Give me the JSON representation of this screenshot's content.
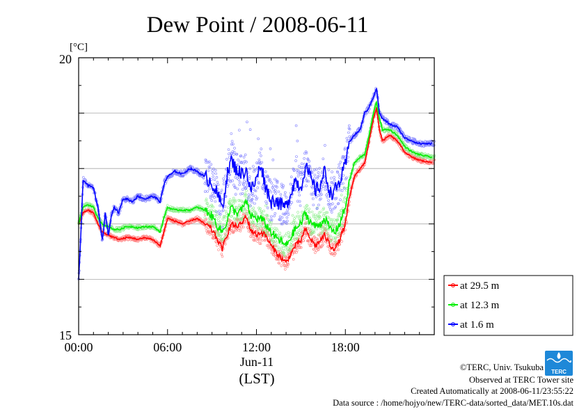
{
  "chart_data": {
    "type": "line",
    "title": "Dew Point / 2008-06-11",
    "ylabel": "[°C]",
    "xlabel_date": "Jun-11",
    "xlabel_tz": "(LST)",
    "ylim": [
      15,
      20
    ],
    "y_ticks_labeled": [
      "20",
      "15"
    ],
    "y_grid": [
      16,
      17,
      18,
      19
    ],
    "xlim": [
      0,
      24
    ],
    "x_ticks": [
      {
        "t": 0,
        "label": "00:00"
      },
      {
        "t": 6,
        "label": "06:00"
      },
      {
        "t": 12,
        "label": "12:00"
      },
      {
        "t": 18,
        "label": "18:00"
      }
    ],
    "legend_position": "right",
    "series": [
      {
        "name": "at 29.5 m",
        "color": "#ff0000",
        "scatter_color": "#ff8080",
        "hours": [
          0.0,
          0.3,
          0.6,
          1.0,
          1.3,
          1.6,
          2.0,
          2.4,
          2.8,
          3.2,
          3.6,
          4.0,
          4.5,
          5.0,
          5.3,
          5.5,
          5.8,
          6.0,
          6.5,
          7.0,
          7.5,
          8.0,
          8.5,
          8.8,
          9.1,
          9.4,
          9.7,
          10.0,
          10.3,
          10.6,
          11.0,
          11.3,
          11.6,
          12.0,
          12.3,
          12.6,
          13.0,
          13.3,
          13.6,
          14.0,
          14.3,
          14.6,
          15.0,
          15.3,
          15.6,
          16.0,
          16.3,
          16.6,
          17.0,
          17.3,
          17.6,
          18.0,
          18.3,
          18.6,
          19.0,
          19.3,
          19.6,
          19.9,
          20.1,
          20.3,
          20.5,
          21.0,
          21.5,
          22.0,
          22.5,
          23.0,
          23.5,
          23.9
        ],
        "values": [
          17.0,
          17.2,
          17.25,
          17.2,
          17.0,
          16.85,
          16.8,
          16.75,
          16.72,
          16.75,
          16.75,
          16.72,
          16.75,
          16.72,
          16.65,
          16.6,
          16.9,
          17.1,
          17.05,
          17.0,
          17.05,
          17.1,
          17.0,
          16.95,
          16.85,
          16.7,
          16.55,
          16.8,
          17.0,
          16.95,
          17.0,
          17.15,
          16.9,
          16.8,
          16.85,
          16.8,
          16.6,
          16.5,
          16.4,
          16.3,
          16.45,
          16.6,
          16.7,
          16.9,
          16.75,
          16.6,
          16.7,
          16.8,
          16.6,
          16.55,
          16.7,
          17.0,
          17.5,
          17.85,
          18.0,
          18.1,
          18.5,
          18.9,
          19.1,
          18.7,
          18.5,
          18.6,
          18.5,
          18.3,
          18.2,
          18.15,
          18.12,
          18.12
        ]
      },
      {
        "name": "at 12.3 m",
        "color": "#00ee00",
        "scatter_color": "#90ee90",
        "hours": [
          0.0,
          0.3,
          0.6,
          1.0,
          1.3,
          1.6,
          2.0,
          2.4,
          2.8,
          3.2,
          3.6,
          4.0,
          4.5,
          5.0,
          5.3,
          5.5,
          5.8,
          6.0,
          6.5,
          7.0,
          7.5,
          8.0,
          8.5,
          8.8,
          9.1,
          9.4,
          9.7,
          10.0,
          10.3,
          10.6,
          11.0,
          11.3,
          11.6,
          12.0,
          12.3,
          12.6,
          13.0,
          13.3,
          13.6,
          14.0,
          14.3,
          14.6,
          15.0,
          15.3,
          15.6,
          16.0,
          16.3,
          16.6,
          17.0,
          17.3,
          17.6,
          18.0,
          18.3,
          18.6,
          19.0,
          19.3,
          19.6,
          19.9,
          20.1,
          20.3,
          20.5,
          21.0,
          21.5,
          22.0,
          22.5,
          23.0,
          23.5,
          23.9
        ],
        "values": [
          17.0,
          17.3,
          17.35,
          17.3,
          17.1,
          17.0,
          16.95,
          16.9,
          16.9,
          16.95,
          16.95,
          16.93,
          16.95,
          16.95,
          16.9,
          16.85,
          17.15,
          17.3,
          17.25,
          17.25,
          17.25,
          17.3,
          17.25,
          17.2,
          17.1,
          16.95,
          16.85,
          17.05,
          17.3,
          17.2,
          17.25,
          17.4,
          17.15,
          17.1,
          17.1,
          17.0,
          16.85,
          16.75,
          16.7,
          16.6,
          16.75,
          16.9,
          17.0,
          17.2,
          17.05,
          16.95,
          17.0,
          17.1,
          16.9,
          16.85,
          17.0,
          17.3,
          17.8,
          18.1,
          18.2,
          18.25,
          18.6,
          19.0,
          19.2,
          18.9,
          18.7,
          18.7,
          18.6,
          18.4,
          18.3,
          18.25,
          18.22,
          18.2
        ]
      },
      {
        "name": "at 1.6 m",
        "color": "#0000ff",
        "scatter_color": "#8080ff",
        "hours": [
          0.0,
          0.1,
          0.3,
          0.6,
          1.0,
          1.3,
          1.6,
          1.8,
          2.0,
          2.2,
          2.4,
          2.7,
          3.0,
          3.3,
          3.6,
          4.0,
          4.5,
          5.0,
          5.3,
          5.5,
          5.8,
          6.0,
          6.5,
          7.0,
          7.5,
          8.0,
          8.5,
          8.8,
          9.1,
          9.4,
          9.7,
          10.0,
          10.3,
          10.6,
          11.0,
          11.3,
          11.6,
          12.0,
          12.3,
          12.6,
          13.0,
          13.3,
          13.6,
          14.0,
          14.3,
          14.6,
          15.0,
          15.3,
          15.6,
          16.0,
          16.3,
          16.6,
          17.0,
          17.3,
          17.6,
          18.0,
          18.3,
          18.6,
          19.0,
          19.3,
          19.6,
          19.9,
          20.1,
          20.3,
          20.5,
          21.0,
          21.5,
          22.0,
          22.5,
          23.0,
          23.5,
          23.9
        ],
        "values": [
          16.0,
          16.5,
          17.8,
          17.7,
          17.65,
          17.3,
          16.7,
          17.2,
          16.8,
          17.15,
          17.3,
          17.2,
          17.45,
          17.45,
          17.4,
          17.5,
          17.45,
          17.5,
          17.45,
          17.4,
          17.75,
          17.85,
          17.95,
          17.9,
          18.0,
          17.95,
          17.85,
          17.8,
          17.7,
          17.5,
          17.3,
          17.85,
          18.15,
          18.0,
          17.9,
          18.0,
          17.6,
          17.8,
          18.1,
          17.7,
          17.4,
          17.45,
          17.35,
          17.3,
          17.55,
          17.8,
          17.65,
          18.05,
          17.85,
          17.6,
          17.7,
          17.95,
          17.55,
          17.6,
          17.75,
          18.05,
          18.5,
          18.6,
          18.7,
          19.0,
          19.1,
          19.3,
          19.45,
          19.0,
          18.9,
          18.8,
          18.75,
          18.55,
          18.5,
          18.45,
          18.45,
          18.45
        ]
      }
    ]
  },
  "footer": {
    "credit": "©TERC, Univ. Tsukuba",
    "site": "Observed at TERC Tower site",
    "created": "Created Automatically at 2008-06-11/23:55:22",
    "source": "Data source : /home/hojyo/new/TERC-data/sorted_data/MET.10s.dat",
    "logo_text": "TERC"
  }
}
